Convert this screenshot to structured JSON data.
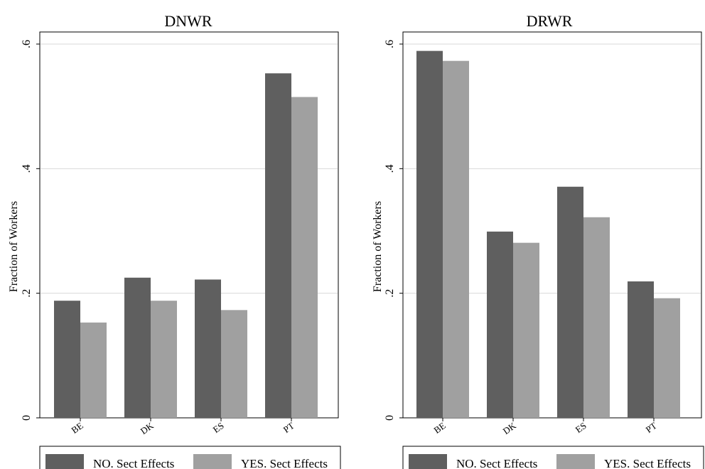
{
  "chart_data": [
    {
      "type": "bar",
      "title": "DNWR",
      "ylabel": "Fraction of Workers",
      "xlabel": "",
      "categories": [
        "BE",
        "DK",
        "ES",
        "PT"
      ],
      "series": [
        {
          "name": "NO. Sect Effects",
          "values": [
            0.188,
            0.225,
            0.222,
            0.553
          ],
          "color": "#5f5f5f"
        },
        {
          "name": "YES. Sect Effects",
          "values": [
            0.153,
            0.188,
            0.173,
            0.515
          ],
          "color": "#a0a0a0"
        }
      ],
      "ylim": [
        0,
        0.6
      ],
      "yticks": [
        0,
        0.2,
        0.4,
        0.6
      ],
      "ytick_labels": [
        "0",
        ".2",
        ".4",
        ".6"
      ],
      "grid": true,
      "legend_position": "bottom"
    },
    {
      "type": "bar",
      "title": "DRWR",
      "ylabel": "Fraction of Workers",
      "xlabel": "",
      "categories": [
        "BE",
        "DK",
        "ES",
        "PT"
      ],
      "series": [
        {
          "name": "NO. Sect Effects",
          "values": [
            0.589,
            0.299,
            0.371,
            0.219
          ],
          "color": "#5f5f5f"
        },
        {
          "name": "YES. Sect Effects",
          "values": [
            0.573,
            0.281,
            0.322,
            0.192
          ],
          "color": "#a0a0a0"
        }
      ],
      "ylim": [
        0,
        0.6
      ],
      "yticks": [
        0,
        0.2,
        0.4,
        0.6
      ],
      "ytick_labels": [
        "0",
        ".2",
        ".4",
        ".6"
      ],
      "grid": true,
      "legend_position": "bottom"
    }
  ]
}
